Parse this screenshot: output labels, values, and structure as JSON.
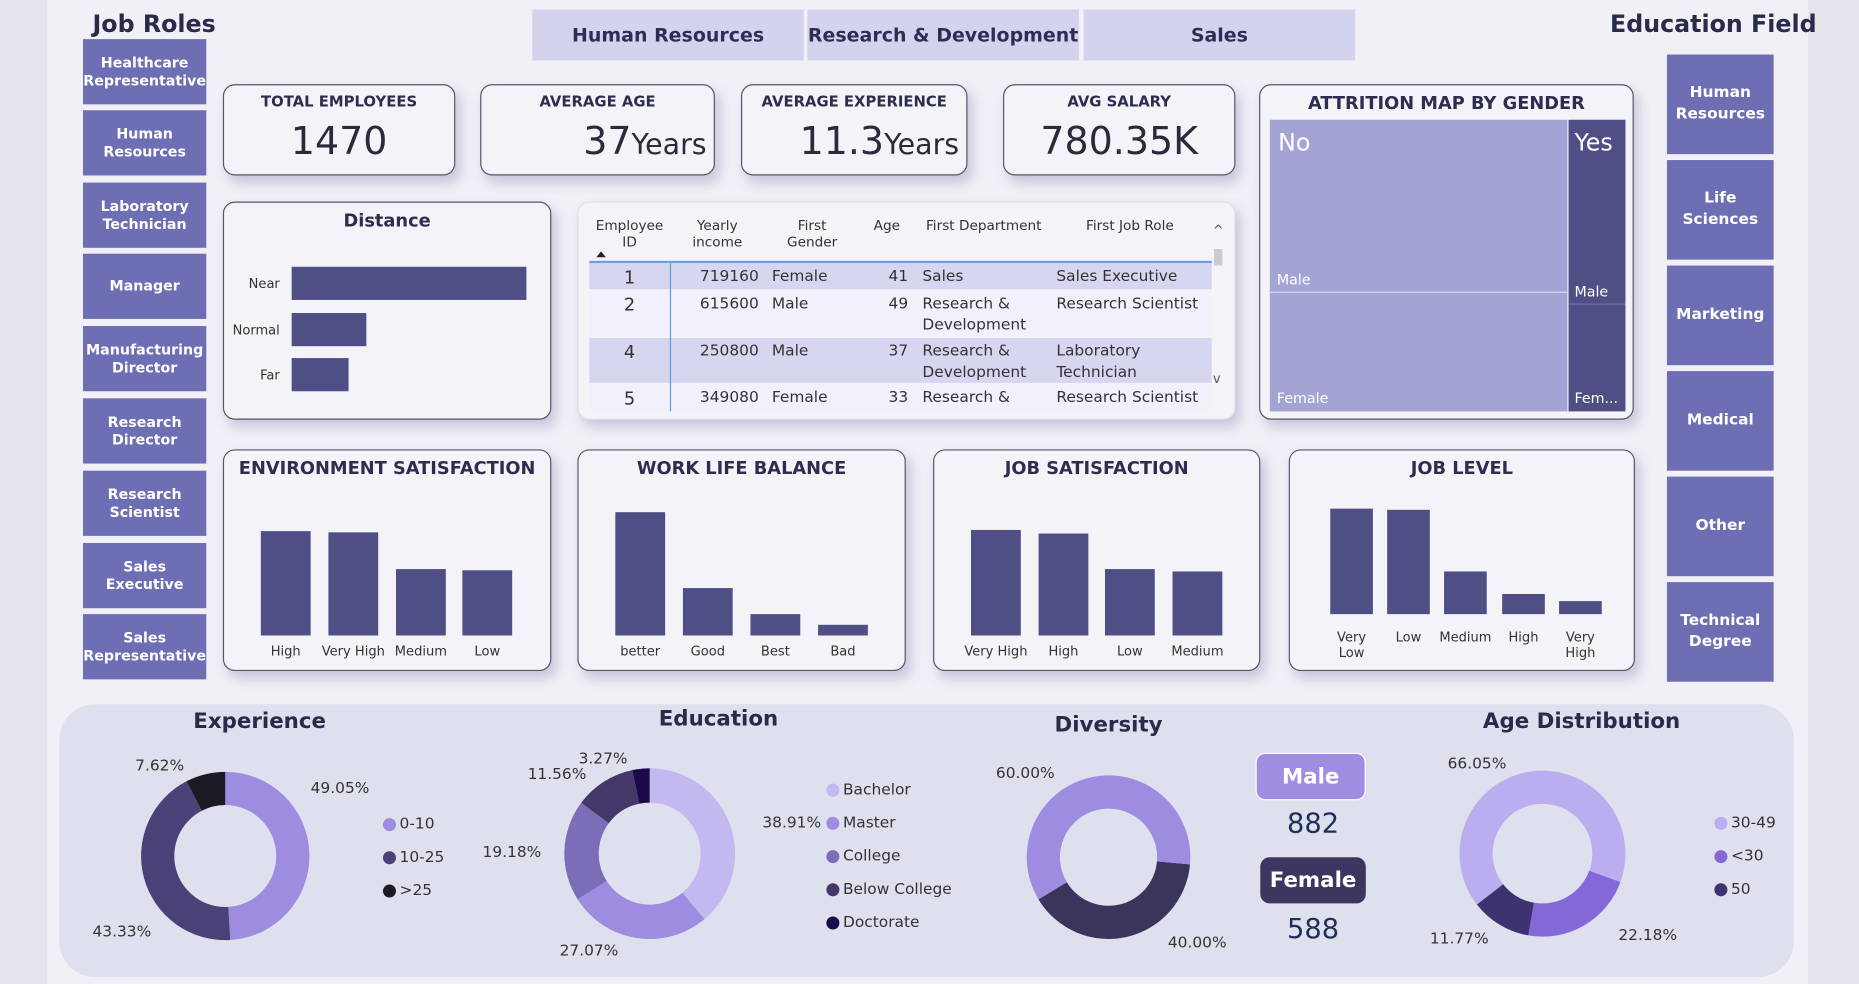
{
  "job_roles": {
    "title": "Job Roles",
    "items": [
      "Healthcare Representative",
      "Human Resources",
      "Laboratory Technician",
      "Manager",
      "Manufacturing Director",
      "Research Director",
      "Research Scientist",
      "Sales Executive",
      "Sales Representative"
    ]
  },
  "departments": [
    "Human Resources",
    "Research & Development",
    "Sales"
  ],
  "education_field": {
    "title": "Education Field",
    "items": [
      "Human Resources",
      "Life Sciences",
      "Marketing",
      "Medical",
      "Other",
      "Technical Degree"
    ]
  },
  "kpis": [
    {
      "label": "TOTAL EMPLOYEES",
      "value": "1470",
      "unit": ""
    },
    {
      "label": "AVERAGE AGE",
      "value": "37",
      "unit": "Years"
    },
    {
      "label": "AVERAGE EXPERIENCE",
      "value": "11.3",
      "unit": "Years"
    },
    {
      "label": "AVG SALARY",
      "value": "780.35K",
      "unit": ""
    }
  ],
  "distance": {
    "title": "Distance",
    "categories": [
      "Near",
      "Normal",
      "Far"
    ],
    "values": [
      950,
      302,
      230
    ]
  },
  "table": {
    "headers": [
      "Employee ID",
      "Yearly income",
      "First Gender",
      "Age",
      "First Department",
      "First Job Role"
    ],
    "rows": [
      [
        "1",
        "719160",
        "Female",
        "41",
        "Sales",
        "Sales Executive"
      ],
      [
        "2",
        "615600",
        "Male",
        "49",
        "Research & Development",
        "Research Scientist"
      ],
      [
        "4",
        "250800",
        "Male",
        "37",
        "Research & Development",
        "Laboratory Technician"
      ],
      [
        "5",
        "349080",
        "Female",
        "33",
        "Research &",
        "Research Scientist"
      ]
    ]
  },
  "attrition": {
    "title": "ATTRITION MAP BY GENDER",
    "no": "No",
    "yes": "Yes",
    "no_male": "Male",
    "no_female": "Female",
    "yes_male": "Male",
    "yes_female": "Fem..."
  },
  "bar_charts": [
    {
      "title": "ENVIRONMENT SATISFACTION",
      "categories": [
        "High",
        "Very High",
        "Medium",
        "Low"
      ],
      "values": [
        453,
        446,
        287,
        284
      ]
    },
    {
      "title": "WORK LIFE BALANCE",
      "categories": [
        "better",
        "Good",
        "Best",
        "Bad"
      ],
      "values": [
        893,
        344,
        153,
        80
      ]
    },
    {
      "title": "JOB SATISFACTION",
      "categories": [
        "Very High",
        "High",
        "Low",
        "Medium"
      ],
      "values": [
        459,
        442,
        289,
        280
      ]
    },
    {
      "title": "JOB LEVEL",
      "categories": [
        "Very Low",
        "Low",
        "Medium",
        "High",
        "Very High"
      ],
      "values": [
        543,
        534,
        218,
        106,
        69
      ]
    }
  ],
  "donuts": [
    {
      "title": "Experience",
      "labels": [
        "0-10",
        "10-25",
        ">25"
      ],
      "values": [
        49.05,
        43.33,
        7.62
      ],
      "pcts": [
        "49.05%",
        "43.33%",
        "7.62%"
      ],
      "colors": [
        "#9d8ce0",
        "#4a4179",
        "#1c1a24"
      ]
    },
    {
      "title": "Education",
      "labels": [
        "Bachelor",
        "Master",
        "College",
        "Below College",
        "Doctorate"
      ],
      "values": [
        38.91,
        27.07,
        19.18,
        11.56,
        3.27
      ],
      "pcts": [
        "38.91%",
        "27.07%",
        "19.18%",
        "11.56%",
        "3.27%"
      ],
      "colors": [
        "#c3b8f0",
        "#9d8ce0",
        "#7c6db8",
        "#433868",
        "#1a0a4a"
      ]
    },
    {
      "title": "Diversity",
      "labels": [
        "Female",
        "Male"
      ],
      "values": [
        40,
        60
      ],
      "pcts": [
        "40.00%",
        "60.00%"
      ],
      "colors": [
        "#3b355c",
        "#9d8ce0"
      ]
    },
    {
      "title": "Age Distribution",
      "labels": [
        "<30",
        "50",
        "30-49"
      ],
      "values": [
        22.18,
        11.77,
        66.05
      ],
      "pcts": [
        "22.18%",
        "11.77%",
        "66.05%"
      ],
      "colors": [
        "#8568d8",
        "#3f3270",
        "#bbaef0"
      ],
      "legend": [
        "30-49",
        "<30",
        "50"
      ],
      "legend_colors": [
        "#bbaef0",
        "#8568d8",
        "#3f3270"
      ]
    }
  ],
  "gender": {
    "male_label": "Male",
    "male_count": "882",
    "female_label": "Female",
    "female_count": "588"
  }
}
